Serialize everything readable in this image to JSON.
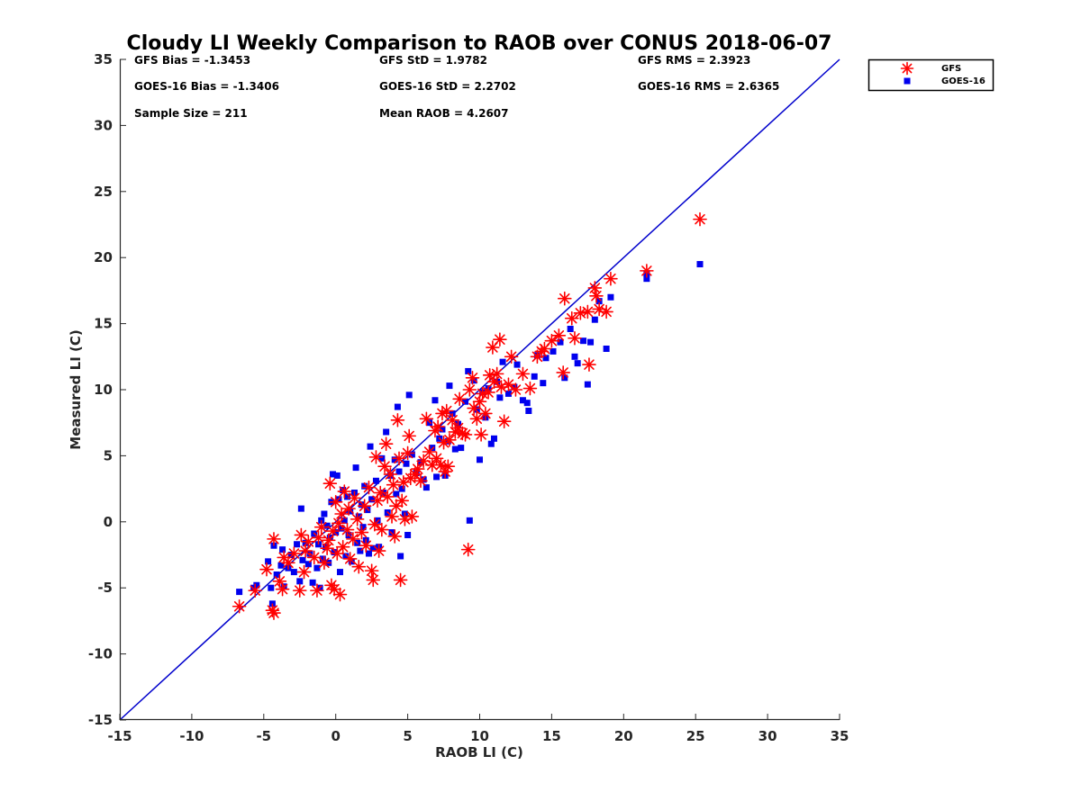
{
  "chart_data": {
    "type": "scatter",
    "title": "Cloudy LI Weekly Comparison to RAOB over CONUS 2018-06-07",
    "xlabel": "RAOB LI (C)",
    "ylabel": "Measured LI (C)",
    "xlim": [
      -15,
      35
    ],
    "ylim": [
      -15,
      35
    ],
    "xticks": [
      "-15",
      "-10",
      "-5",
      "0",
      "5",
      "10",
      "15",
      "20",
      "25",
      "30",
      "35"
    ],
    "yticks": [
      "-15",
      "-10",
      "-5",
      "0",
      "5",
      "10",
      "15",
      "20",
      "25",
      "30",
      "35"
    ],
    "grid": false,
    "legend_position": "outside-top-right",
    "stats": [
      "GFS Bias = -1.3453",
      "GFS StD = 1.9782",
      "GFS RMS = 2.3923",
      "GOES-16 Bias = -1.3406",
      "GOES-16 StD = 2.2702",
      "GOES-16 RMS = 2.6365",
      "Sample Size = 211",
      "Mean RAOB = 4.2607"
    ],
    "reference_line": {
      "from": [
        -15,
        -15
      ],
      "to": [
        35,
        35
      ],
      "color": "#0000cc"
    },
    "series": [
      {
        "name": "GFS",
        "marker": "asterisk",
        "color": "#ff0000",
        "points": [
          [
            -6.7,
            -6.4
          ],
          [
            -5.6,
            -5.2
          ],
          [
            -4.8,
            -3.6
          ],
          [
            -4.4,
            -6.7
          ],
          [
            -4.3,
            -6.9
          ],
          [
            -4.3,
            -1.3
          ],
          [
            -3.9,
            -4.5
          ],
          [
            -3.7,
            -5.1
          ],
          [
            -3.6,
            -2.7
          ],
          [
            -3.3,
            -3.1
          ],
          [
            -2.9,
            -2.4
          ],
          [
            -2.5,
            -5.2
          ],
          [
            -2.4,
            -1.0
          ],
          [
            -2.2,
            -3.8
          ],
          [
            -2.1,
            -2.2
          ],
          [
            -1.9,
            -1.5
          ],
          [
            -1.5,
            -2.7
          ],
          [
            -1.3,
            -5.2
          ],
          [
            -1.2,
            -1.2
          ],
          [
            -1.0,
            -0.4
          ],
          [
            -0.8,
            -3.1
          ],
          [
            -0.6,
            -2.0
          ],
          [
            -0.5,
            -1.4
          ],
          [
            -0.4,
            2.9
          ],
          [
            -0.3,
            -4.8
          ],
          [
            -0.2,
            -0.7
          ],
          [
            -0.1,
            -5.1
          ],
          [
            0.0,
            1.5
          ],
          [
            0.1,
            -2.4
          ],
          [
            0.2,
            -0.1
          ],
          [
            0.3,
            -5.5
          ],
          [
            0.4,
            0.6
          ],
          [
            0.5,
            -1.9
          ],
          [
            0.6,
            2.3
          ],
          [
            0.8,
            -0.6
          ],
          [
            0.9,
            1.0
          ],
          [
            1.0,
            -2.8
          ],
          [
            1.2,
            -1.3
          ],
          [
            1.3,
            1.8
          ],
          [
            1.5,
            0.2
          ],
          [
            1.6,
            -3.4
          ],
          [
            1.8,
            -0.8
          ],
          [
            2.0,
            1.2
          ],
          [
            2.1,
            -1.8
          ],
          [
            2.3,
            2.6
          ],
          [
            2.5,
            -3.7
          ],
          [
            2.6,
            -4.4
          ],
          [
            2.7,
            -0.2
          ],
          [
            2.8,
            4.9
          ],
          [
            2.9,
            1.6
          ],
          [
            3.0,
            -2.2
          ],
          [
            3.1,
            2.2
          ],
          [
            3.2,
            -0.6
          ],
          [
            3.4,
            4.2
          ],
          [
            3.5,
            5.9
          ],
          [
            3.6,
            1.9
          ],
          [
            3.8,
            3.6
          ],
          [
            3.9,
            0.4
          ],
          [
            4.0,
            2.8
          ],
          [
            4.1,
            -1.1
          ],
          [
            4.2,
            1.2
          ],
          [
            4.3,
            7.7
          ],
          [
            4.4,
            4.8
          ],
          [
            4.5,
            -4.4
          ],
          [
            4.6,
            1.6
          ],
          [
            4.7,
            3.0
          ],
          [
            4.8,
            0.2
          ],
          [
            5.0,
            5.2
          ],
          [
            5.1,
            6.5
          ],
          [
            5.2,
            3.3
          ],
          [
            5.3,
            0.4
          ],
          [
            5.5,
            3.6
          ],
          [
            5.7,
            4.0
          ],
          [
            5.9,
            3.1
          ],
          [
            6.1,
            4.6
          ],
          [
            6.3,
            7.8
          ],
          [
            6.5,
            5.3
          ],
          [
            6.7,
            4.3
          ],
          [
            6.9,
            6.9
          ],
          [
            7.0,
            4.8
          ],
          [
            7.1,
            7.2
          ],
          [
            7.3,
            4.3
          ],
          [
            7.4,
            8.2
          ],
          [
            7.5,
            6.0
          ],
          [
            7.6,
            3.8
          ],
          [
            7.7,
            8.4
          ],
          [
            7.8,
            4.2
          ],
          [
            7.9,
            6.2
          ],
          [
            8.1,
            7.7
          ],
          [
            8.3,
            6.8
          ],
          [
            8.5,
            7.1
          ],
          [
            8.6,
            9.3
          ],
          [
            8.8,
            6.7
          ],
          [
            9.0,
            6.6
          ],
          [
            9.2,
            -2.1
          ],
          [
            9.3,
            10.0
          ],
          [
            9.5,
            10.9
          ],
          [
            9.6,
            8.6
          ],
          [
            9.8,
            7.8
          ],
          [
            10.0,
            9.1
          ],
          [
            10.1,
            6.6
          ],
          [
            10.2,
            9.7
          ],
          [
            10.4,
            8.2
          ],
          [
            10.6,
            9.8
          ],
          [
            10.7,
            11.1
          ],
          [
            10.9,
            13.2
          ],
          [
            11.0,
            10.6
          ],
          [
            11.2,
            11.2
          ],
          [
            11.4,
            13.8
          ],
          [
            11.5,
            10.2
          ],
          [
            11.7,
            7.6
          ],
          [
            12.0,
            10.4
          ],
          [
            12.2,
            12.5
          ],
          [
            12.5,
            10.0
          ],
          [
            13.0,
            11.2
          ],
          [
            13.5,
            10.1
          ],
          [
            14.0,
            12.5
          ],
          [
            14.3,
            12.9
          ],
          [
            14.5,
            13.1
          ],
          [
            15.0,
            13.7
          ],
          [
            15.5,
            14.1
          ],
          [
            15.8,
            11.3
          ],
          [
            15.9,
            16.9
          ],
          [
            16.4,
            15.4
          ],
          [
            16.6,
            13.9
          ],
          [
            17.0,
            15.8
          ],
          [
            17.5,
            15.9
          ],
          [
            17.6,
            11.9
          ],
          [
            18.0,
            17.7
          ],
          [
            18.1,
            17.1
          ],
          [
            18.3,
            16.1
          ],
          [
            18.8,
            15.9
          ],
          [
            19.1,
            18.4
          ],
          [
            21.6,
            19.0
          ],
          [
            25.3,
            22.9
          ]
        ]
      },
      {
        "name": "GOES-16",
        "marker": "square",
        "color": "#0000ee",
        "points": [
          [
            -6.7,
            -5.3
          ],
          [
            -5.7,
            -5.0
          ],
          [
            -5.5,
            -4.8
          ],
          [
            -4.7,
            -3.0
          ],
          [
            -4.5,
            -5.0
          ],
          [
            -4.4,
            -6.2
          ],
          [
            -4.3,
            -1.8
          ],
          [
            -4.1,
            -4.0
          ],
          [
            -3.8,
            -3.3
          ],
          [
            -3.7,
            -2.1
          ],
          [
            -3.6,
            -4.9
          ],
          [
            -3.3,
            -3.5
          ],
          [
            -3.1,
            -2.5
          ],
          [
            -2.9,
            -3.8
          ],
          [
            -2.7,
            -1.7
          ],
          [
            -2.5,
            -4.5
          ],
          [
            -2.4,
            1.0
          ],
          [
            -2.3,
            -2.9
          ],
          [
            -2.1,
            -1.6
          ],
          [
            -1.9,
            -3.2
          ],
          [
            -1.8,
            -2.4
          ],
          [
            -1.6,
            -4.6
          ],
          [
            -1.5,
            -0.9
          ],
          [
            -1.3,
            -3.5
          ],
          [
            -1.2,
            -1.7
          ],
          [
            -1.1,
            -5.0
          ],
          [
            -1.0,
            0.1
          ],
          [
            -0.9,
            -2.8
          ],
          [
            -0.8,
            0.6
          ],
          [
            -0.7,
            -1.9
          ],
          [
            -0.6,
            -0.3
          ],
          [
            -0.5,
            -3.1
          ],
          [
            -0.4,
            -1.2
          ],
          [
            -0.3,
            1.5
          ],
          [
            -0.2,
            3.6
          ],
          [
            -0.1,
            -2.3
          ],
          [
            0.0,
            -0.8
          ],
          [
            0.1,
            3.5
          ],
          [
            0.2,
            1.7
          ],
          [
            0.3,
            -3.8
          ],
          [
            0.4,
            -0.5
          ],
          [
            0.5,
            2.4
          ],
          [
            0.6,
            0.1
          ],
          [
            0.7,
            -2.6
          ],
          [
            0.8,
            1.9
          ],
          [
            0.9,
            -1.0
          ],
          [
            1.0,
            0.8
          ],
          [
            1.1,
            -3.0
          ],
          [
            1.3,
            2.2
          ],
          [
            1.4,
            4.1
          ],
          [
            1.5,
            -1.6
          ],
          [
            1.6,
            0.4
          ],
          [
            1.7,
            -2.2
          ],
          [
            1.8,
            1.3
          ],
          [
            1.9,
            -0.4
          ],
          [
            2.0,
            2.7
          ],
          [
            2.1,
            -1.4
          ],
          [
            2.2,
            0.9
          ],
          [
            2.3,
            -2.4
          ],
          [
            2.4,
            5.7
          ],
          [
            2.5,
            1.7
          ],
          [
            2.6,
            -2.0
          ],
          [
            2.8,
            3.1
          ],
          [
            2.9,
            0.1
          ],
          [
            3.0,
            -1.9
          ],
          [
            3.2,
            4.8
          ],
          [
            3.3,
            2.2
          ],
          [
            3.5,
            6.8
          ],
          [
            3.6,
            0.7
          ],
          [
            3.8,
            3.5
          ],
          [
            3.9,
            -0.8
          ],
          [
            4.1,
            4.7
          ],
          [
            4.2,
            2.1
          ],
          [
            4.3,
            8.7
          ],
          [
            4.4,
            3.8
          ],
          [
            4.5,
            -2.6
          ],
          [
            4.6,
            2.5
          ],
          [
            4.8,
            0.6
          ],
          [
            4.9,
            4.4
          ],
          [
            5.0,
            -1.0
          ],
          [
            5.1,
            9.6
          ],
          [
            5.3,
            5.1
          ],
          [
            5.6,
            3.7
          ],
          [
            5.9,
            4.5
          ],
          [
            6.1,
            3.2
          ],
          [
            6.3,
            2.6
          ],
          [
            6.5,
            7.5
          ],
          [
            6.7,
            5.6
          ],
          [
            6.9,
            9.2
          ],
          [
            7.0,
            3.4
          ],
          [
            7.2,
            6.3
          ],
          [
            7.4,
            7.0
          ],
          [
            7.6,
            3.5
          ],
          [
            7.8,
            6.1
          ],
          [
            7.9,
            10.3
          ],
          [
            8.1,
            8.2
          ],
          [
            8.3,
            5.5
          ],
          [
            8.5,
            7.4
          ],
          [
            8.7,
            5.6
          ],
          [
            9.0,
            9.1
          ],
          [
            9.2,
            11.4
          ],
          [
            9.3,
            0.1
          ],
          [
            9.6,
            10.7
          ],
          [
            9.8,
            8.5
          ],
          [
            10.0,
            4.7
          ],
          [
            10.2,
            9.8
          ],
          [
            10.4,
            7.9
          ],
          [
            10.6,
            10.1
          ],
          [
            10.8,
            5.9
          ],
          [
            11.0,
            6.3
          ],
          [
            11.2,
            10.6
          ],
          [
            11.4,
            9.4
          ],
          [
            11.6,
            12.1
          ],
          [
            12.0,
            9.7
          ],
          [
            12.4,
            10.2
          ],
          [
            12.6,
            11.9
          ],
          [
            13.0,
            9.2
          ],
          [
            13.3,
            9.0
          ],
          [
            13.4,
            8.4
          ],
          [
            13.8,
            11.0
          ],
          [
            14.0,
            12.6
          ],
          [
            14.4,
            10.5
          ],
          [
            14.6,
            12.4
          ],
          [
            15.1,
            12.9
          ],
          [
            15.6,
            13.6
          ],
          [
            15.9,
            10.9
          ],
          [
            16.3,
            14.6
          ],
          [
            16.6,
            12.5
          ],
          [
            16.8,
            12.0
          ],
          [
            17.2,
            13.7
          ],
          [
            17.5,
            10.4
          ],
          [
            17.7,
            13.6
          ],
          [
            18.0,
            15.3
          ],
          [
            18.3,
            16.7
          ],
          [
            18.8,
            13.1
          ],
          [
            19.1,
            17.0
          ],
          [
            21.6,
            18.4
          ],
          [
            21.6,
            18.8
          ],
          [
            25.3,
            19.5
          ]
        ]
      }
    ]
  }
}
